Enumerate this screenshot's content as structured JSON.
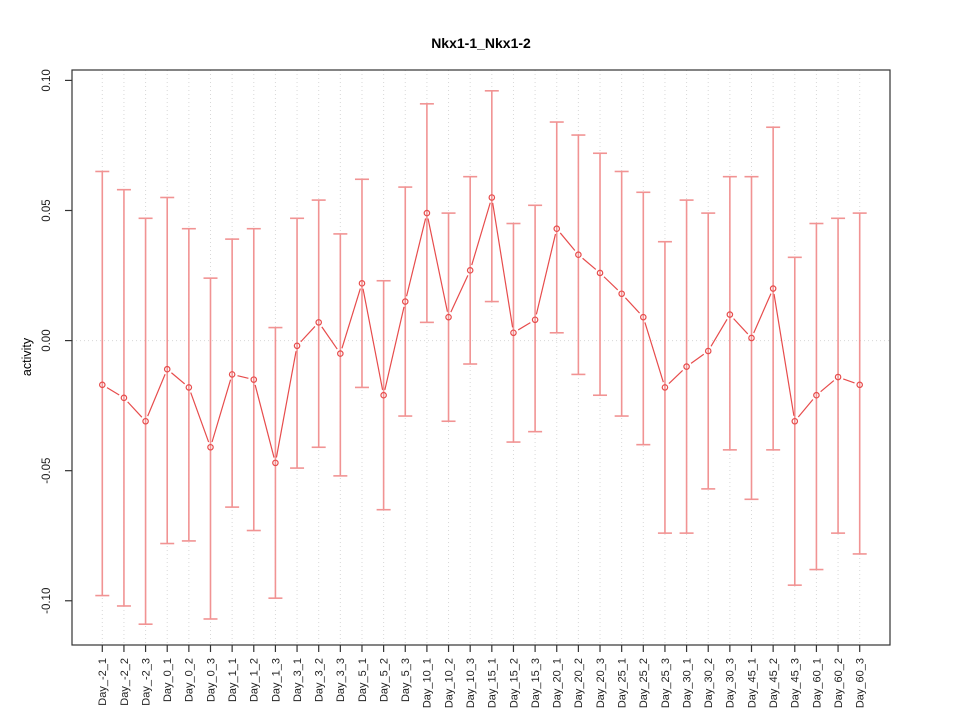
{
  "chart_data": {
    "type": "line",
    "title": "Nkx1-1_Nkx1-2",
    "xlabel": "",
    "ylabel": "activity",
    "legend_position": "none",
    "grid": "dotted-vertical-per-category-and-zero-line",
    "marker": "open-circle",
    "error_bars": true,
    "ylim": [
      -0.117,
      0.104
    ],
    "yticks": [
      {
        "value": 0.1,
        "label": "0.10"
      },
      {
        "value": 0.05,
        "label": "0.05"
      },
      {
        "value": 0.0,
        "label": "0.00"
      },
      {
        "value": -0.05,
        "label": "-0.05"
      },
      {
        "value": -0.1,
        "label": "-0.10"
      }
    ],
    "categories": [
      "Day_-2_1",
      "Day_-2_2",
      "Day_-2_3",
      "Day_0_1",
      "Day_0_2",
      "Day_0_3",
      "Day_1_1",
      "Day_1_2",
      "Day_1_3",
      "Day_3_1",
      "Day_3_2",
      "Day_3_3",
      "Day_5_1",
      "Day_5_2",
      "Day_5_3",
      "Day_10_1",
      "Day_10_2",
      "Day_10_3",
      "Day_15_1",
      "Day_15_2",
      "Day_15_3",
      "Day_20_1",
      "Day_20_2",
      "Day_20_3",
      "Day_25_1",
      "Day_25_2",
      "Day_25_3",
      "Day_30_1",
      "Day_30_2",
      "Day_30_3",
      "Day_45_1",
      "Day_45_2",
      "Day_45_3",
      "Day_60_1",
      "Day_60_2",
      "Day_60_3"
    ],
    "series": [
      {
        "name": "activity",
        "values": [
          -0.017,
          -0.022,
          -0.031,
          -0.011,
          -0.018,
          -0.041,
          -0.013,
          -0.015,
          -0.047,
          -0.002,
          0.007,
          -0.005,
          0.022,
          -0.021,
          0.015,
          0.049,
          0.009,
          0.027,
          0.055,
          0.003,
          0.008,
          0.043,
          0.033,
          0.026,
          0.018,
          0.009,
          -0.018,
          -0.01,
          -0.004,
          0.01,
          0.001,
          0.02,
          -0.031,
          -0.021,
          -0.014,
          -0.017
        ],
        "error_high": [
          0.065,
          0.058,
          0.047,
          0.055,
          0.043,
          0.024,
          0.039,
          0.043,
          0.005,
          0.047,
          0.054,
          0.041,
          0.062,
          0.023,
          0.059,
          0.091,
          0.049,
          0.063,
          0.096,
          0.045,
          0.052,
          0.084,
          0.079,
          0.072,
          0.065,
          0.057,
          0.038,
          0.054,
          0.049,
          0.063,
          0.063,
          0.082,
          0.032,
          0.045,
          0.047,
          0.049
        ],
        "error_low": [
          -0.098,
          -0.102,
          -0.109,
          -0.078,
          -0.077,
          -0.107,
          -0.064,
          -0.073,
          -0.099,
          -0.049,
          -0.041,
          -0.052,
          -0.018,
          -0.065,
          -0.029,
          0.007,
          -0.031,
          -0.009,
          0.015,
          -0.039,
          -0.035,
          0.003,
          -0.013,
          -0.021,
          -0.029,
          -0.04,
          -0.074,
          -0.074,
          -0.057,
          -0.042,
          -0.061,
          -0.042,
          -0.094,
          -0.088,
          -0.074,
          -0.082
        ]
      }
    ],
    "colors": {
      "point_line": "#e74c4c",
      "error_bar": "#f19393",
      "grid": "#d8d8d8",
      "frame": "#333333",
      "tick_text": "#222222"
    }
  }
}
